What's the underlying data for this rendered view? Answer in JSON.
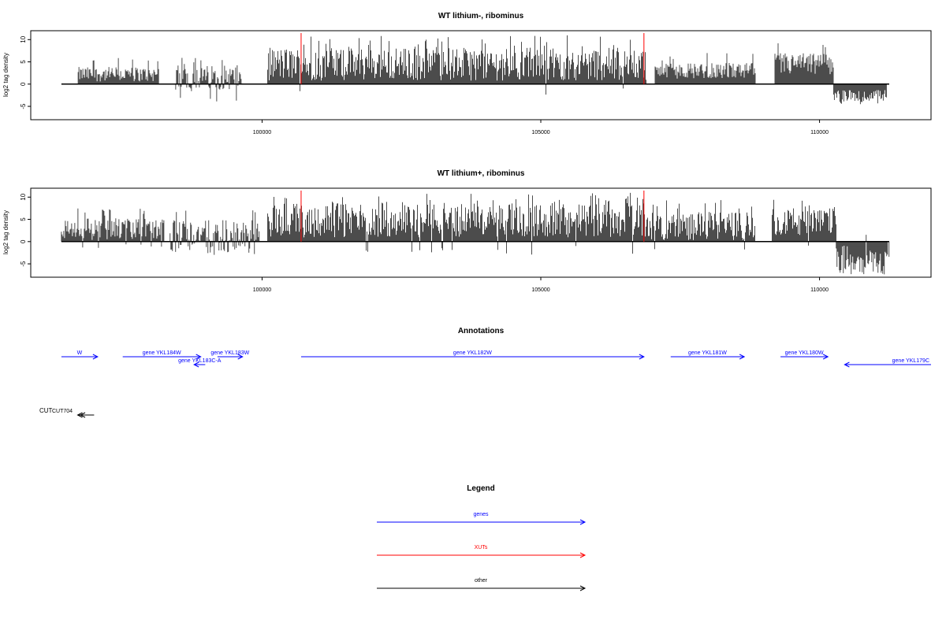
{
  "panels": [
    {
      "title": "WT lithium-, ribominus",
      "ylabel": "log2 tag density",
      "yticks": [
        "-5",
        "0",
        "5",
        "10"
      ],
      "xticks": [
        "100000",
        "105000",
        "110000"
      ]
    },
    {
      "title": "WT lithium+, ribominus",
      "ylabel": "log2 tag density",
      "yticks": [
        "-5",
        "0",
        "5",
        "10"
      ],
      "xticks": [
        "100000",
        "105000",
        "110000"
      ]
    }
  ],
  "annotations": {
    "title": "Annotations",
    "genes": [
      {
        "label": "W",
        "start": 96400,
        "end": 97050,
        "strand": "+",
        "row": 0,
        "color": "#0000ff"
      },
      {
        "label": "gene YKL184W",
        "start": 97500,
        "end": 98900,
        "strand": "+",
        "row": 0,
        "color": "#0000ff"
      },
      {
        "label": "gene YKL183W",
        "start": 99200,
        "end": 99650,
        "strand": "+",
        "row": 0,
        "color": "#0000ff"
      },
      {
        "label": "gene YKL183C-A",
        "start": 98780,
        "end": 98980,
        "strand": "-",
        "row": 1,
        "color": "#0000ff"
      },
      {
        "label": "gene YKL182W",
        "start": 100700,
        "end": 106850,
        "strand": "+",
        "row": 0,
        "color": "#0000ff"
      },
      {
        "label": "gene YKL181W",
        "start": 107330,
        "end": 108650,
        "strand": "+",
        "row": 0,
        "color": "#0000ff"
      },
      {
        "label": "gene YKL180W",
        "start": 109300,
        "end": 110150,
        "strand": "+",
        "row": 0,
        "color": "#0000ff"
      },
      {
        "label": "gene YKL179C",
        "start": 110450,
        "end": 112000,
        "strand": "-",
        "row": 1,
        "color": "#0000ff"
      }
    ],
    "other": [
      {
        "label": "CUT",
        "start": 96550,
        "end": 96900,
        "strand": "-"
      },
      {
        "label": "CUT704",
        "start": 96600,
        "end": 97100,
        "strand": "-"
      }
    ]
  },
  "legend": {
    "title": "Legend",
    "items": [
      {
        "label": "genes",
        "color": "#0000ff"
      },
      {
        "label": "XUTs",
        "color": "#ff0000"
      },
      {
        "label": "other",
        "color": "#000000"
      }
    ]
  },
  "chart_data": [
    {
      "type": "bar",
      "title": "WT lithium-, ribominus",
      "xlabel": "",
      "ylabel": "log2 tag density",
      "xlim": [
        95850,
        112000
      ],
      "ylim": [
        -8,
        12
      ],
      "baseline": {
        "start": 96400,
        "end": 111250
      },
      "markers": [
        {
          "x": 100700,
          "color": "#ff0000"
        },
        {
          "x": 106850,
          "color": "#ff0000"
        }
      ],
      "segments": [
        {
          "start": 96700,
          "end": 98150,
          "mean": 2.2,
          "max": 6.5,
          "min": 0.5,
          "neg": 0.0
        },
        {
          "start": 98450,
          "end": 99650,
          "mean": 1.5,
          "max": 6.0,
          "min": -4.0,
          "neg": 0.05
        },
        {
          "start": 100100,
          "end": 106900,
          "mean": 4.5,
          "max": 11.0,
          "min": -2.5,
          "neg": 0.01
        },
        {
          "start": 107050,
          "end": 108850,
          "mean": 3.0,
          "max": 7.0,
          "min": 0.5,
          "neg": 0.0
        },
        {
          "start": 109200,
          "end": 110250,
          "mean": 4.5,
          "max": 9.5,
          "min": 0.3,
          "neg": 0.0
        },
        {
          "start": 110250,
          "end": 111200,
          "mean": -2.0,
          "max": 0.0,
          "min": -4.5,
          "neg": 1.0
        }
      ]
    },
    {
      "type": "bar",
      "title": "WT lithium+, ribominus",
      "xlabel": "",
      "ylabel": "log2 tag density",
      "xlim": [
        95850,
        112000
      ],
      "ylim": [
        -8,
        12
      ],
      "baseline": {
        "start": 96400,
        "end": 111250
      },
      "markers": [
        {
          "x": 100700,
          "color": "#ff0000"
        },
        {
          "x": 106850,
          "color": "#ff0000"
        }
      ],
      "segments": [
        {
          "start": 96400,
          "end": 98250,
          "mean": 2.8,
          "max": 7.5,
          "min": -1.5,
          "neg": 0.05
        },
        {
          "start": 98350,
          "end": 99950,
          "mean": 1.8,
          "max": 8.0,
          "min": -3.0,
          "neg": 0.2
        },
        {
          "start": 100100,
          "end": 106900,
          "mean": 4.8,
          "max": 11.0,
          "min": -3.0,
          "neg": 0.02
        },
        {
          "start": 106900,
          "end": 108850,
          "mean": 3.5,
          "max": 9.5,
          "min": -2.0,
          "neg": 0.02
        },
        {
          "start": 109150,
          "end": 110300,
          "mean": 4.5,
          "max": 9.5,
          "min": -1.5,
          "neg": 0.02
        },
        {
          "start": 110300,
          "end": 111250,
          "mean": -1.8,
          "max": 2.0,
          "min": -7.5,
          "neg": 0.9
        }
      ]
    }
  ]
}
